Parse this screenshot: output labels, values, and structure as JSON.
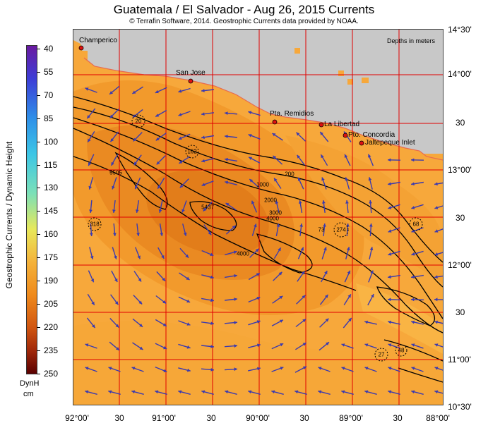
{
  "title": "Guatemala / El Salvador - Aug 26, 2015  Currents",
  "subtitle": "© Terrafin Software, 2014.  Geostrophic Currents data provided by NOAA.",
  "depth_note": "Depths in meters",
  "colorbar": {
    "title": "Geostrophic Currents / Dynamic Height",
    "unit_line1": "DynH",
    "unit_line2": "cm",
    "ticks": [
      "40",
      "55",
      "70",
      "85",
      "100",
      "115",
      "130",
      "145",
      "160",
      "175",
      "190",
      "205",
      "220",
      "235",
      "250"
    ],
    "range": [
      40,
      250
    ]
  },
  "lat_labels": [
    "14°30'",
    "14°00'",
    "30",
    "13°00'",
    "30",
    "12°00'",
    "30",
    "11°00'",
    "10°30'"
  ],
  "lon_labels": [
    "92°00'",
    "30",
    "91°00'",
    "30",
    "90°00'",
    "30",
    "89°00'",
    "30",
    "88°00'"
  ],
  "places": [
    {
      "name": "Champerico"
    },
    {
      "name": "San Jose"
    },
    {
      "name": "Pta. Remidios"
    },
    {
      "name": "La Libertad"
    },
    {
      "name": "Pto. Concordia"
    },
    {
      "name": "Jaltepeque Inlet"
    }
  ],
  "eddy_labels": [
    "20",
    "162",
    "318",
    "274",
    "68",
    "27",
    "48"
  ],
  "contour_labels": [
    "5505",
    "5437",
    "4000",
    "4000",
    "3000",
    "2000",
    "1000",
    "200",
    "73"
  ],
  "colors": {
    "land": "#c8c8c8",
    "ocean_light": "#f7a83b",
    "ocean_mid": "#f0962a",
    "ocean_dark": "#e07a18",
    "grid": "#e00000",
    "arrow": "#3a3ab0",
    "place_marker": "#dd1111",
    "contour": "#000000"
  }
}
